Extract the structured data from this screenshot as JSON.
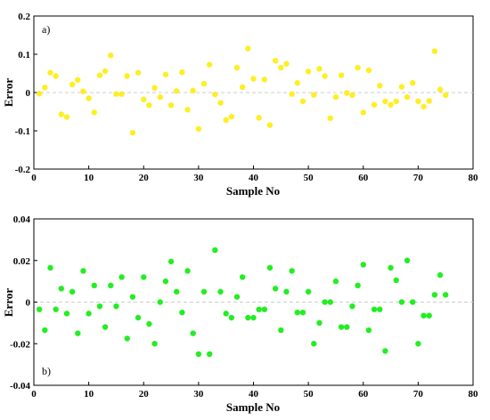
{
  "colors": {
    "panel_a_marker": "#ffee22",
    "panel_b_marker": "#22ee22",
    "zero_line": "#cccccc"
  },
  "chart_data": [
    {
      "type": "scatter",
      "panel_label": "a)",
      "xlabel": "Sample No",
      "ylabel": "Error",
      "xlim": [
        0,
        80
      ],
      "ylim": [
        -0.2,
        0.2
      ],
      "xticks": [
        "0",
        "10",
        "20",
        "30",
        "40",
        "50",
        "60",
        "70",
        "80"
      ],
      "yticks": [
        "-0.2",
        "-0.1",
        "0",
        "0.1",
        "0.2"
      ],
      "grid": false,
      "zero_line": true,
      "marker_color": "#ffee22",
      "x": [
        1,
        2,
        3,
        4,
        5,
        6,
        7,
        8,
        9,
        10,
        11,
        12,
        13,
        14,
        15,
        16,
        17,
        18,
        19,
        20,
        21,
        22,
        23,
        24,
        25,
        26,
        27,
        28,
        29,
        30,
        31,
        32,
        33,
        34,
        35,
        36,
        37,
        38,
        39,
        40,
        41,
        42,
        43,
        44,
        45,
        46,
        47,
        48,
        49,
        50,
        51,
        52,
        53,
        54,
        55,
        56,
        57,
        58,
        59,
        60,
        61,
        62,
        63,
        64,
        65,
        66,
        67,
        68,
        69,
        70,
        71,
        72,
        73,
        74,
        75
      ],
      "y": [
        -0.003,
        0.013,
        0.052,
        0.043,
        -0.057,
        -0.064,
        0.021,
        0.033,
        0.003,
        -0.015,
        -0.052,
        0.045,
        0.056,
        0.097,
        -0.004,
        -0.004,
        0.043,
        -0.105,
        0.052,
        -0.018,
        -0.033,
        0.012,
        -0.012,
        0.047,
        -0.033,
        0.004,
        0.053,
        -0.045,
        0.005,
        -0.095,
        0.023,
        0.073,
        -0.005,
        -0.027,
        -0.072,
        -0.063,
        0.065,
        0.014,
        0.115,
        0.036,
        -0.066,
        0.034,
        -0.085,
        0.083,
        0.065,
        0.075,
        -0.004,
        0.025,
        -0.023,
        0.055,
        -0.006,
        0.062,
        0.043,
        -0.067,
        -0.012,
        0.045,
        -0.001,
        -0.007,
        0.065,
        -0.052,
        0.058,
        -0.032,
        0.018,
        -0.023,
        -0.032,
        -0.023,
        0.015,
        -0.012,
        0.025,
        -0.023,
        -0.037,
        -0.022,
        0.108,
        0.008,
        -0.007
      ]
    },
    {
      "type": "scatter",
      "panel_label": "b)",
      "xlabel": "Sample No",
      "ylabel": "Error",
      "xlim": [
        0,
        80
      ],
      "ylim": [
        -0.04,
        0.04
      ],
      "xticks": [
        "0",
        "10",
        "20",
        "30",
        "40",
        "50",
        "60",
        "70",
        "80"
      ],
      "yticks": [
        "-0.04",
        "-0.02",
        "0",
        "0.02",
        "0.04"
      ],
      "grid": false,
      "zero_line": true,
      "marker_color": "#22ee22",
      "x": [
        1,
        2,
        3,
        4,
        5,
        6,
        7,
        8,
        9,
        10,
        11,
        12,
        13,
        14,
        15,
        16,
        17,
        18,
        19,
        20,
        21,
        22,
        23,
        24,
        25,
        26,
        27,
        28,
        29,
        30,
        31,
        32,
        33,
        34,
        35,
        36,
        37,
        38,
        39,
        40,
        41,
        42,
        43,
        44,
        45,
        46,
        47,
        48,
        49,
        50,
        51,
        52,
        53,
        54,
        55,
        56,
        57,
        58,
        59,
        60,
        61,
        62,
        63,
        64,
        65,
        66,
        67,
        68,
        69,
        70,
        71,
        72,
        73,
        74,
        75
      ],
      "y": [
        -0.0035,
        -0.0135,
        0.0165,
        -0.0035,
        0.0065,
        -0.0055,
        0.005,
        -0.015,
        0.015,
        -0.0055,
        0.008,
        -0.002,
        -0.012,
        0.008,
        -0.002,
        0.012,
        -0.0175,
        0.0025,
        -0.0075,
        0.012,
        -0.0105,
        -0.02,
        0,
        0.01,
        0.0195,
        0.005,
        -0.005,
        0.015,
        -0.015,
        -0.025,
        0.005,
        -0.025,
        0.025,
        0.005,
        -0.0055,
        -0.0075,
        0.0025,
        0.012,
        -0.0075,
        -0.0075,
        -0.0035,
        -0.0035,
        0.0165,
        0.0065,
        -0.0135,
        0.005,
        0.015,
        -0.005,
        -0.005,
        0.005,
        -0.02,
        -0.01,
        0,
        0,
        0.01,
        -0.012,
        -0.012,
        -0.002,
        0.008,
        0.018,
        -0.0135,
        -0.0035,
        -0.0035,
        -0.0235,
        0.0165,
        0.0105,
        0,
        0.02,
        0,
        -0.02,
        -0.0065,
        -0.0065,
        0.0035,
        0.013,
        0.0035
      ]
    }
  ]
}
